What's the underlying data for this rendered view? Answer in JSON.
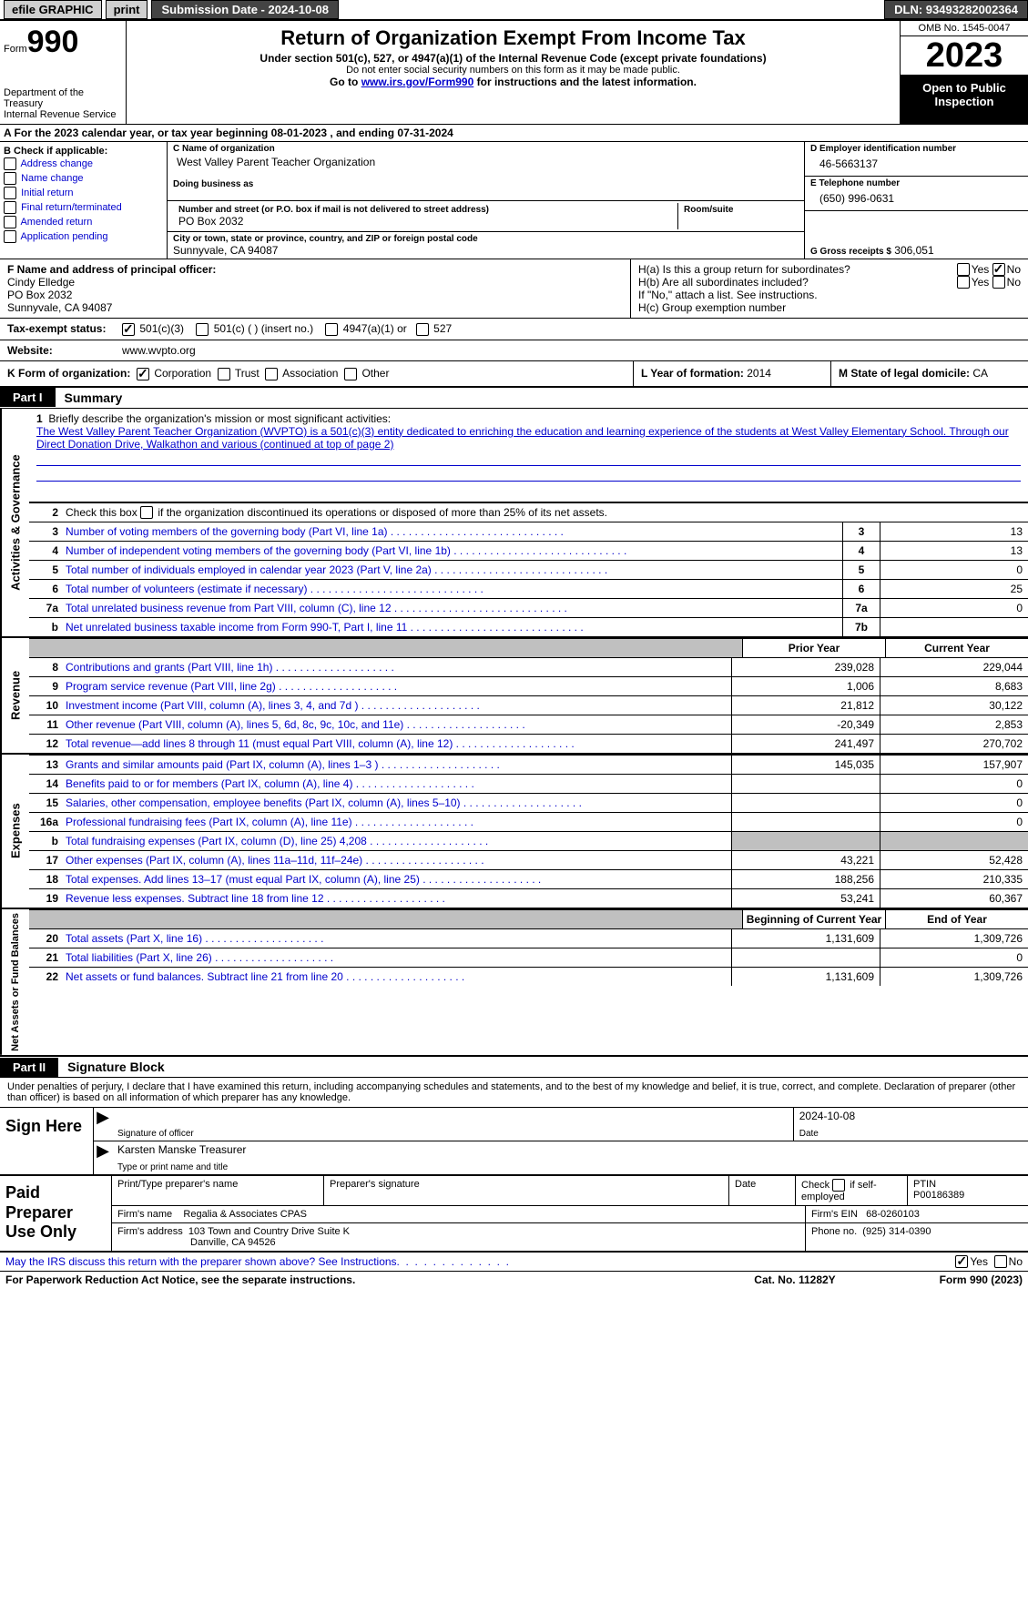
{
  "topbar": {
    "efile": "efile GRAPHIC",
    "print": "print",
    "submission": "Submission Date - 2024-10-08",
    "dln": "DLN: 93493282002364"
  },
  "header": {
    "form_label": "Form",
    "form_num": "990",
    "dept": "Department of the Treasury",
    "irs": "Internal Revenue Service",
    "title": "Return of Organization Exempt From Income Tax",
    "sub1": "Under section 501(c), 527, or 4947(a)(1) of the Internal Revenue Code (except private foundations)",
    "sub2": "Do not enter social security numbers on this form as it may be made public.",
    "sub3_pre": "Go to ",
    "sub3_link": "www.irs.gov/Form990",
    "sub3_post": " for instructions and the latest information.",
    "omb": "OMB No. 1545-0047",
    "year": "2023",
    "open": "Open to Public Inspection"
  },
  "lineA": {
    "pre": "A For the 2023 calendar year, or tax year beginning ",
    "begin": "08-01-2023",
    "mid": " , and ending ",
    "end": "07-31-2024"
  },
  "colB": {
    "label": "B Check if applicable:",
    "items": [
      "Address change",
      "Name change",
      "Initial return",
      "Final return/terminated",
      "Amended return",
      "Application pending"
    ]
  },
  "colC": {
    "name_label": "C Name of organization",
    "name": "West Valley Parent Teacher Organization",
    "dba_label": "Doing business as",
    "street_label": "Number and street (or P.O. box if mail is not delivered to street address)",
    "room_label": "Room/suite",
    "street": "PO Box 2032",
    "city_label": "City or town, state or province, country, and ZIP or foreign postal code",
    "city": "Sunnyvale, CA  94087"
  },
  "colD": {
    "ein_label": "D Employer identification number",
    "ein": "46-5663137",
    "phone_label": "E Telephone number",
    "phone": "(650) 996-0631",
    "gross_label": "G Gross receipts $",
    "gross": "306,051"
  },
  "fh": {
    "f_label": "F Name and address of principal officer:",
    "f_name": "Cindy Elledge",
    "f_addr1": "PO Box 2032",
    "f_addr2": "Sunnyvale, CA  94087",
    "ha_label": "H(a)  Is this a group return for subordinates?",
    "hb_label": "H(b)  Are all subordinates included?",
    "hb_note": "If \"No,\" attach a list. See instructions.",
    "hc_label": "H(c)  Group exemption number ",
    "yes": "Yes",
    "no": "No"
  },
  "rowI": {
    "label": "Tax-exempt status:",
    "opt1": "501(c)(3)",
    "opt2": "501(c) (  ) (insert no.)",
    "opt3": "4947(a)(1) or",
    "opt4": "527"
  },
  "rowJ": {
    "label": "Website:",
    "val": "www.wvpto.org"
  },
  "rowK": {
    "label": "K Form of organization:",
    "opts": [
      "Corporation",
      "Trust",
      "Association",
      "Other"
    ],
    "l_label": "L Year of formation: ",
    "l_val": "2014",
    "m_label": "M State of legal domicile: ",
    "m_val": "CA"
  },
  "part1": {
    "tag": "Part I",
    "label": "Summary"
  },
  "mission": {
    "n": "1",
    "label": "Briefly describe the organization's mission or most significant activities:",
    "text": "The West Valley Parent Teacher Organization (WVPTO) is a 501(c)(3) entity dedicated to enriching the education and learning experience of the students at West Valley Elementary School. Through our Direct Donation Drive, Walkathon and various (continued at top of page 2)"
  },
  "gov_rows": [
    {
      "n": "2",
      "t": "Check this box          if the organization discontinued its operations or disposed of more than 25% of its net assets.",
      "box": "",
      "val": ""
    },
    {
      "n": "3",
      "t": "Number of voting members of the governing body (Part VI, line 1a)",
      "box": "3",
      "val": "13"
    },
    {
      "n": "4",
      "t": "Number of independent voting members of the governing body (Part VI, line 1b)",
      "box": "4",
      "val": "13"
    },
    {
      "n": "5",
      "t": "Total number of individuals employed in calendar year 2023 (Part V, line 2a)",
      "box": "5",
      "val": "0"
    },
    {
      "n": "6",
      "t": "Total number of volunteers (estimate if necessary)",
      "box": "6",
      "val": "25"
    },
    {
      "n": "7a",
      "t": "Total unrelated business revenue from Part VIII, column (C), line 12",
      "box": "7a",
      "val": "0"
    },
    {
      "n": "b",
      "t": "Net unrelated business taxable income from Form 990-T, Part I, line 11",
      "box": "7b",
      "val": ""
    }
  ],
  "vtabs": {
    "gov": "Activities & Governance",
    "rev": "Revenue",
    "exp": "Expenses",
    "net": "Net Assets or Fund Balances"
  },
  "col_headers": {
    "prior": "Prior Year",
    "current": "Current Year",
    "bcy": "Beginning of Current Year",
    "eoy": "End of Year"
  },
  "rev_rows": [
    {
      "n": "8",
      "t": "Contributions and grants (Part VIII, line 1h)",
      "v1": "239,028",
      "v2": "229,044"
    },
    {
      "n": "9",
      "t": "Program service revenue (Part VIII, line 2g)",
      "v1": "1,006",
      "v2": "8,683"
    },
    {
      "n": "10",
      "t": "Investment income (Part VIII, column (A), lines 3, 4, and 7d )",
      "v1": "21,812",
      "v2": "30,122"
    },
    {
      "n": "11",
      "t": "Other revenue (Part VIII, column (A), lines 5, 6d, 8c, 9c, 10c, and 11e)",
      "v1": "-20,349",
      "v2": "2,853"
    },
    {
      "n": "12",
      "t": "Total revenue—add lines 8 through 11 (must equal Part VIII, column (A), line 12)",
      "v1": "241,497",
      "v2": "270,702"
    }
  ],
  "exp_rows": [
    {
      "n": "13",
      "t": "Grants and similar amounts paid (Part IX, column (A), lines 1–3 )",
      "v1": "145,035",
      "v2": "157,907"
    },
    {
      "n": "14",
      "t": "Benefits paid to or for members (Part IX, column (A), line 4)",
      "v1": "",
      "v2": "0"
    },
    {
      "n": "15",
      "t": "Salaries, other compensation, employee benefits (Part IX, column (A), lines 5–10)",
      "v1": "",
      "v2": "0"
    },
    {
      "n": "16a",
      "t": "Professional fundraising fees (Part IX, column (A), line 11e)",
      "v1": "",
      "v2": "0"
    },
    {
      "n": "b",
      "t": "Total fundraising expenses (Part IX, column (D), line 25) 4,208",
      "v1": "grey",
      "v2": "grey"
    },
    {
      "n": "17",
      "t": "Other expenses (Part IX, column (A), lines 11a–11d, 11f–24e)",
      "v1": "43,221",
      "v2": "52,428"
    },
    {
      "n": "18",
      "t": "Total expenses. Add lines 13–17 (must equal Part IX, column (A), line 25)",
      "v1": "188,256",
      "v2": "210,335"
    },
    {
      "n": "19",
      "t": "Revenue less expenses. Subtract line 18 from line 12",
      "v1": "53,241",
      "v2": "60,367"
    }
  ],
  "net_rows": [
    {
      "n": "20",
      "t": "Total assets (Part X, line 16)",
      "v1": "1,131,609",
      "v2": "1,309,726"
    },
    {
      "n": "21",
      "t": "Total liabilities (Part X, line 26)",
      "v1": "",
      "v2": "0"
    },
    {
      "n": "22",
      "t": "Net assets or fund balances. Subtract line 21 from line 20",
      "v1": "1,131,609",
      "v2": "1,309,726"
    }
  ],
  "part2": {
    "tag": "Part II",
    "label": "Signature Block"
  },
  "perjury": "Under penalties of perjury, I declare that I have examined this return, including accompanying schedules and statements, and to the best of my knowledge and belief, it is true, correct, and complete. Declaration of preparer (other than officer) is based on all information of which preparer has any knowledge.",
  "sign": {
    "here": "Sign Here",
    "sig_label": "Signature of officer",
    "officer": "Karsten Manske  Treasurer",
    "name_label": "Type or print name and title",
    "date_label": "Date",
    "date": "2024-10-08"
  },
  "paid": {
    "label": "Paid Preparer Use Only",
    "h1": "Print/Type preparer's name",
    "h2": "Preparer's signature",
    "h3": "Date",
    "h4_pre": "Check",
    "h4_post": "if self-employed",
    "h5": "PTIN",
    "ptin": "P00186389",
    "firm_name_label": "Firm's name",
    "firm_name": "Regalia & Associates CPAS",
    "firm_ein_label": "Firm's EIN",
    "firm_ein": "68-0260103",
    "firm_addr_label": "Firm's address",
    "firm_addr1": "103 Town and Country Drive Suite K",
    "firm_addr2": "Danville, CA  94526",
    "phone_label": "Phone no.",
    "phone": "(925) 314-0390"
  },
  "footer": {
    "discuss": "May the IRS discuss this return with the preparer shown above? See Instructions.",
    "yes": "Yes",
    "no": "No",
    "paperwork": "For Paperwork Reduction Act Notice, see the separate instructions.",
    "cat": "Cat. No. 11282Y",
    "form": "Form 990 (2023)"
  }
}
